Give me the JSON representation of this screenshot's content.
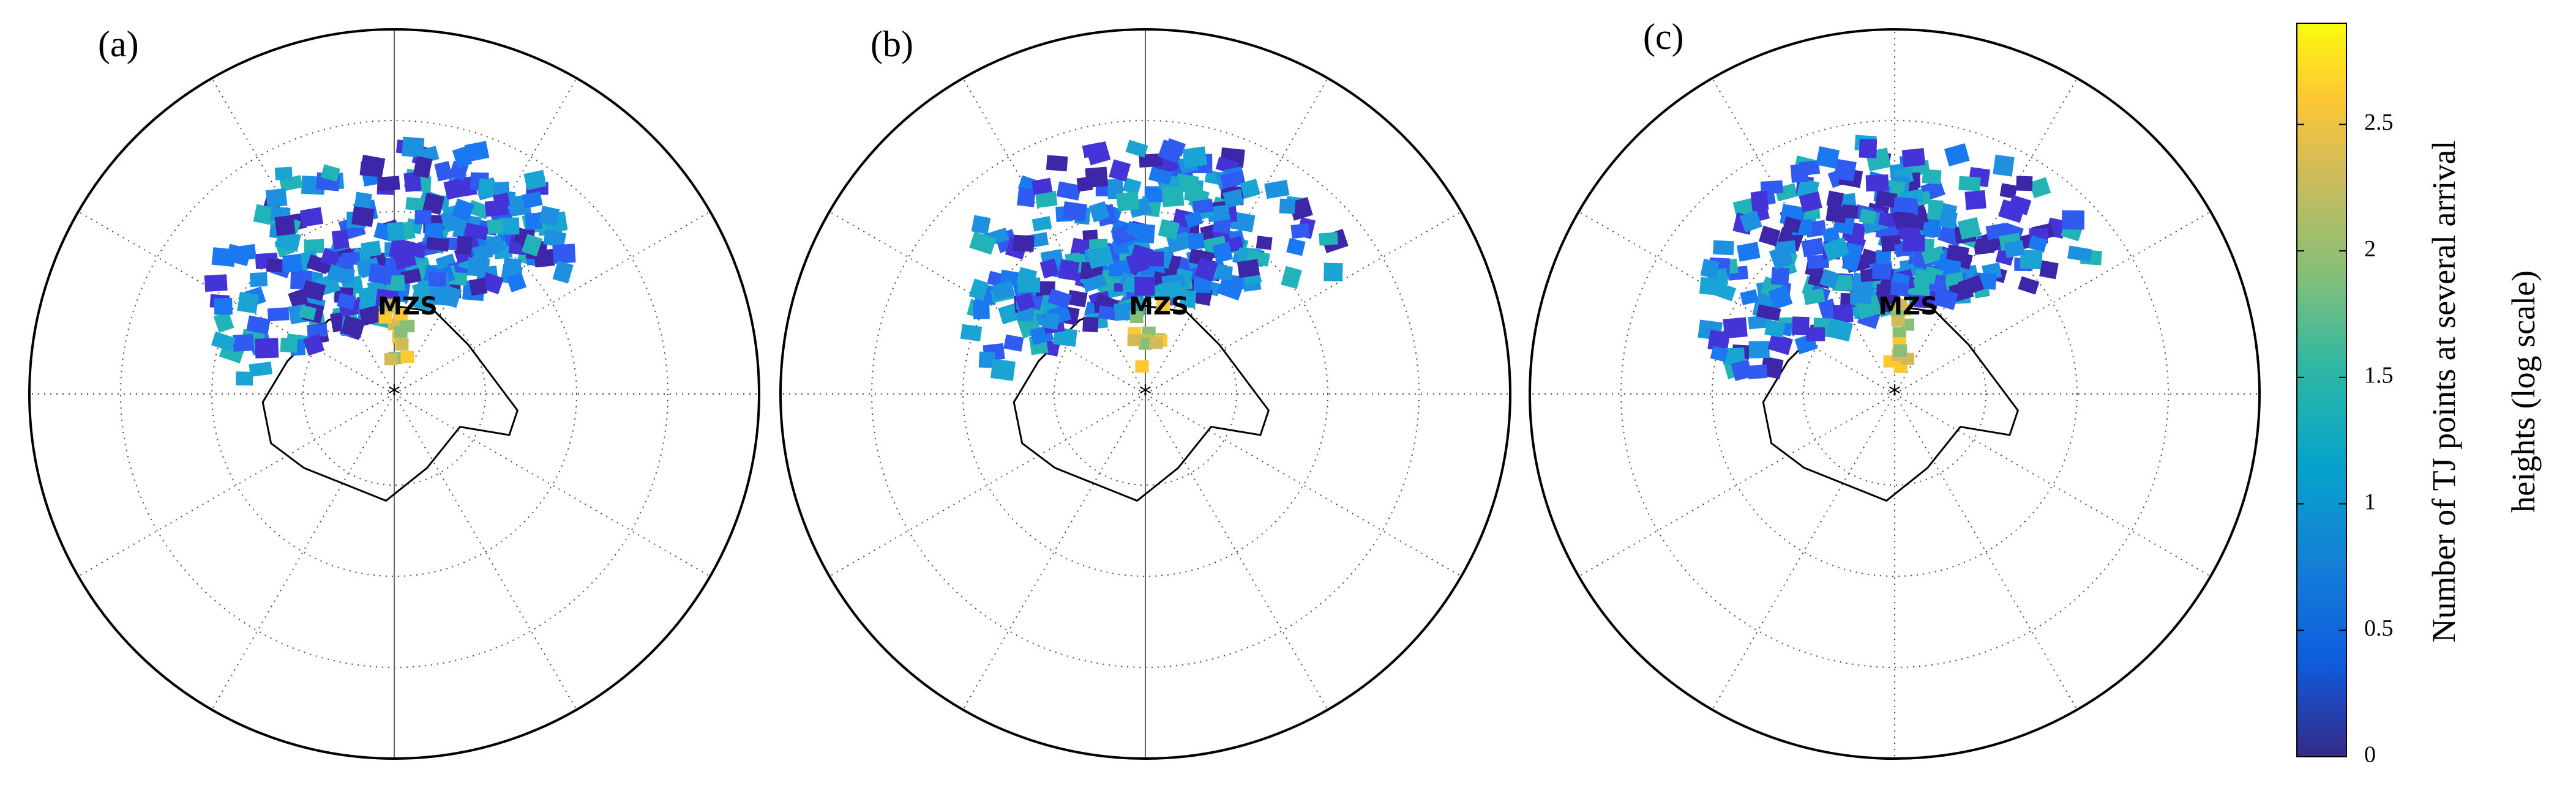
{
  "panels": [
    {
      "label": "(a)",
      "station": "MZS"
    },
    {
      "label": "(b)",
      "station": "MZS"
    },
    {
      "label": "(c)",
      "station": "MZS"
    }
  ],
  "colorbar": {
    "label_lines": [
      "Number of TJ points at several arrival",
      "heights (log scale)"
    ],
    "lim": [
      0,
      2.9
    ],
    "ticks": [
      0,
      0.5,
      1,
      1.5,
      2,
      2.5
    ]
  }
}
